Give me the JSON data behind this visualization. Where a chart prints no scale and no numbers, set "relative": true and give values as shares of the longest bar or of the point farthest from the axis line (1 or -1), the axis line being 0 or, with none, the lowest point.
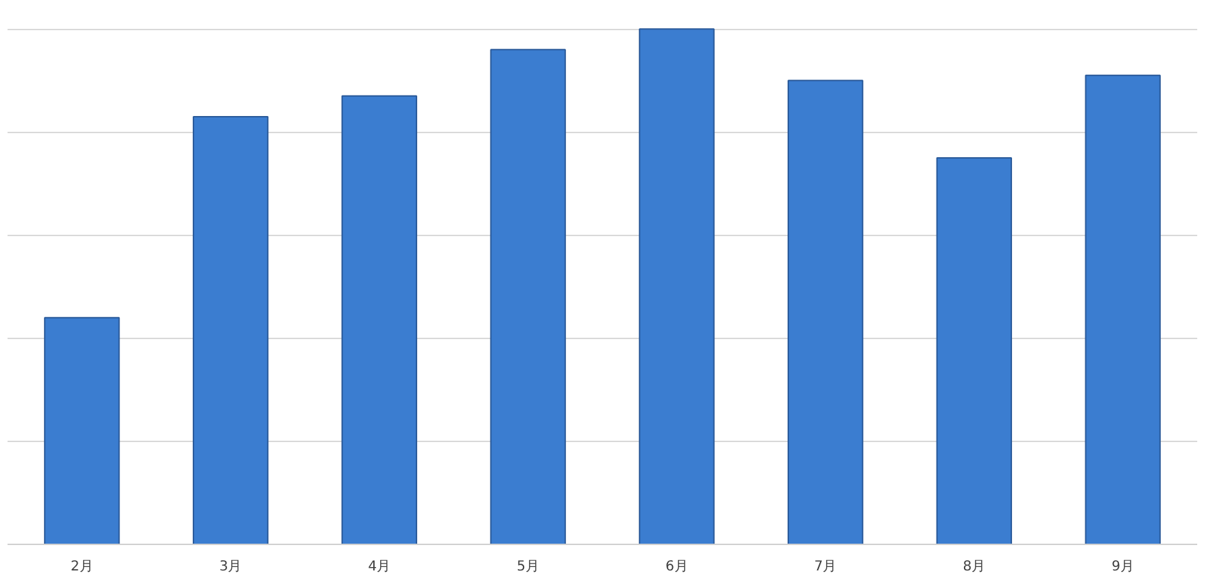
{
  "chart_data": {
    "type": "bar",
    "relative": true,
    "categories": [
      "2月",
      "3月",
      "4月",
      "5月",
      "6月",
      "7月",
      "8月",
      "9月"
    ],
    "values": [
      0.44,
      0.83,
      0.87,
      0.96,
      1,
      0.9,
      0.75,
      0.91
    ],
    "color": "#3b7dd0",
    "grid": "y"
  }
}
